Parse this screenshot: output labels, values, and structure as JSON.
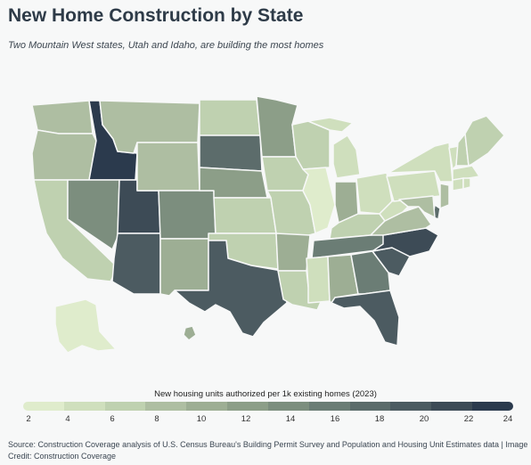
{
  "title": "New Home Construction by State",
  "subtitle": "Two Mountain West states, Utah and Idaho, are building the most homes",
  "legend": {
    "title": "New housing units authorized per 1k existing homes (2023)",
    "ticks": [
      "2",
      "4",
      "6",
      "8",
      "10",
      "12",
      "14",
      "16",
      "18",
      "20",
      "22",
      "24"
    ],
    "min": 2,
    "max": 24,
    "colors": [
      "#dfeccc",
      "#cfdfbd",
      "#bfd1b0",
      "#aebea2",
      "#9dae94",
      "#8c9e88",
      "#7c8e7e",
      "#6b7d75",
      "#5c6c6b",
      "#4c5b61",
      "#3d4b56",
      "#2b3a4d"
    ]
  },
  "source": "Source: Construction Coverage analysis of U.S. Census Bureau's Building Permit Survey and Population and Housing Unit Estimates data | Image Credit: Construction Coverage",
  "states": {
    "WA": {
      "color": "#aebea2"
    },
    "OR": {
      "color": "#aebea2"
    },
    "CA": {
      "color": "#bfd1b0"
    },
    "ID": {
      "color": "#2b3a4d"
    },
    "NV": {
      "color": "#7c8e7e"
    },
    "UT": {
      "color": "#3d4b56"
    },
    "AZ": {
      "color": "#4c5b61"
    },
    "MT": {
      "color": "#aebea2"
    },
    "WY": {
      "color": "#aebea2"
    },
    "CO": {
      "color": "#7c8e7e"
    },
    "NM": {
      "color": "#9dae94"
    },
    "ND": {
      "color": "#bfd1b0"
    },
    "SD": {
      "color": "#5c6c6b"
    },
    "NE": {
      "color": "#8c9e88"
    },
    "KS": {
      "color": "#bfd1b0"
    },
    "OK": {
      "color": "#bfd1b0"
    },
    "TX": {
      "color": "#4c5b61"
    },
    "MN": {
      "color": "#8c9e88"
    },
    "IA": {
      "color": "#bfd1b0"
    },
    "MO": {
      "color": "#bfd1b0"
    },
    "AR": {
      "color": "#9dae94"
    },
    "LA": {
      "color": "#bfd1b0"
    },
    "WI": {
      "color": "#bfd1b0"
    },
    "IL": {
      "color": "#dfeccc"
    },
    "MI": {
      "color": "#cfdfbd"
    },
    "IN": {
      "color": "#9dae94"
    },
    "OH": {
      "color": "#cfdfbd"
    },
    "KY": {
      "color": "#bfd1b0"
    },
    "TN": {
      "color": "#6b7d75"
    },
    "MS": {
      "color": "#cfdfbd"
    },
    "AL": {
      "color": "#9dae94"
    },
    "GA": {
      "color": "#6b7d75"
    },
    "FL": {
      "color": "#4c5b61"
    },
    "SC": {
      "color": "#4c5b61"
    },
    "NC": {
      "color": "#3d4b56"
    },
    "VA": {
      "color": "#aebea2"
    },
    "WV": {
      "color": "#cfdfbd"
    },
    "PA": {
      "color": "#cfdfbd"
    },
    "NY": {
      "color": "#cfdfbd"
    },
    "ME": {
      "color": "#bfd1b0"
    },
    "NH": {
      "color": "#bfd1b0"
    },
    "VT": {
      "color": "#cfdfbd"
    },
    "MA": {
      "color": "#cfdfbd"
    },
    "CT": {
      "color": "#cfdfbd"
    },
    "RI": {
      "color": "#cfdfbd"
    },
    "NJ": {
      "color": "#aebea2"
    },
    "DE": {
      "color": "#5c6c6b"
    },
    "MD": {
      "color": "#aebea2"
    },
    "AK": {
      "color": "#dfeccc"
    },
    "HI": {
      "color": "#9dae94"
    }
  }
}
